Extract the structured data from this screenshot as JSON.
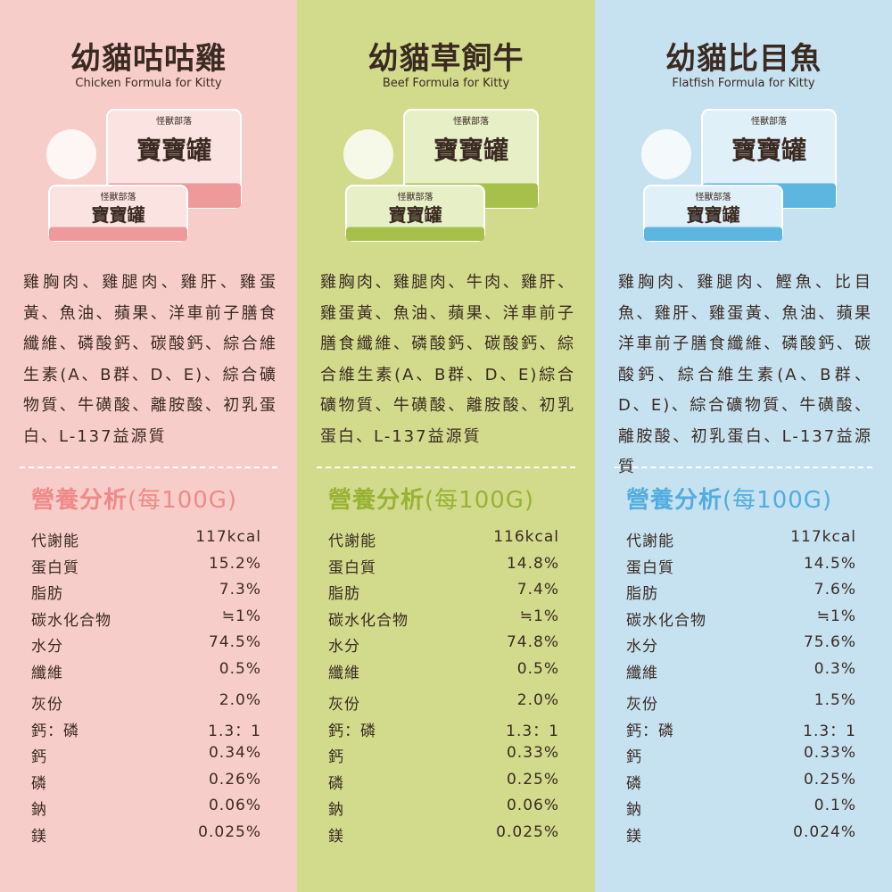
{
  "columns": [
    {
      "title": "幼貓咕咕雞",
      "subtitle": "Chicken Formula for Kitty",
      "can": {
        "brand": "怪獸部落",
        "name": "寶寶罐"
      },
      "ingredients": "雞胸肉、雞腿肉、雞肝、雞蛋黃、魚油、蘋果、洋車前子膳食纖維、磷酸鈣、碳酸鈣、綜合維生素(A、B群、D、E)、綜合礦物質、牛磺酸、離胺酸、初乳蛋白、L-137益源質",
      "nutrition_title": "營養分析",
      "nutrition_unit": "(每100G)",
      "rows": [
        [
          "代謝能",
          "117kcal"
        ],
        [
          "蛋白質",
          "15.2%"
        ],
        [
          "脂肪",
          "7.3%"
        ],
        [
          "碳水化合物",
          "≒1%"
        ],
        [
          "水分",
          "74.5%"
        ],
        [
          "纖維",
          "0.5%"
        ],
        [
          "灰份",
          "2.0%"
        ],
        [
          "鈣：磷",
          "1.3：1"
        ],
        [
          "鈣",
          "0.34%"
        ],
        [
          "磷",
          "0.26%"
        ],
        [
          "鈉",
          "0.06%"
        ],
        [
          "鎂",
          "0.025%"
        ]
      ]
    },
    {
      "title": "幼貓草飼牛",
      "subtitle": "Beef Formula for Kitty",
      "can": {
        "brand": "怪獸部落",
        "name": "寶寶罐"
      },
      "ingredients": "雞胸肉、雞腿肉、牛肉、雞肝、雞蛋黃、魚油、蘋果、洋車前子膳食纖維、磷酸鈣、碳酸鈣、綜合維生素(A、B群、D、E)綜合礦物質、牛磺酸、離胺酸、初乳蛋白、L-137益源質",
      "nutrition_title": "營養分析",
      "nutrition_unit": "(每100G)",
      "rows": [
        [
          "代謝能",
          "116kcal"
        ],
        [
          "蛋白質",
          "14.8%"
        ],
        [
          "脂肪",
          "7.4%"
        ],
        [
          "碳水化合物",
          "≒1%"
        ],
        [
          "水分",
          "74.8%"
        ],
        [
          "纖維",
          "0.5%"
        ],
        [
          "灰份",
          "2.0%"
        ],
        [
          "鈣：磷",
          "1.3：1"
        ],
        [
          "鈣",
          "0.33%"
        ],
        [
          "磷",
          "0.25%"
        ],
        [
          "鈉",
          "0.06%"
        ],
        [
          "鎂",
          "0.025%"
        ]
      ]
    },
    {
      "title": "幼貓比目魚",
      "subtitle": "Flatfish Formula for Kitty",
      "can": {
        "brand": "怪獸部落",
        "name": "寶寶罐"
      },
      "ingredients": "雞胸肉、雞腿肉、鰹魚、比目魚、雞肝、雞蛋黃、魚油、蘋果洋車前子膳食纖維、磷酸鈣、碳酸鈣、綜合維生素(A、B群、D、E)、綜合礦物質、牛磺酸、離胺酸、初乳蛋白、L-137益源質",
      "nutrition_title": "營養分析",
      "nutrition_unit": "(每100G)",
      "rows": [
        [
          "代謝能",
          "117kcal"
        ],
        [
          "蛋白質",
          "14.5%"
        ],
        [
          "脂肪",
          "7.6%"
        ],
        [
          "碳水化合物",
          "≒1%"
        ],
        [
          "水分",
          "75.6%"
        ],
        [
          "纖維",
          "0.3%"
        ],
        [
          "灰份",
          "1.5%"
        ],
        [
          "鈣：磷",
          "1.3：1"
        ],
        [
          "鈣",
          "0.33%"
        ],
        [
          "磷",
          "0.25%"
        ],
        [
          "鈉",
          "0.1%"
        ],
        [
          "鎂",
          "0.024%"
        ]
      ]
    }
  ]
}
